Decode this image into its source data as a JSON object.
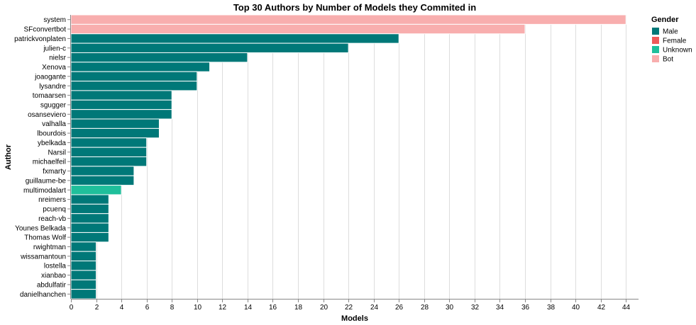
{
  "chart_data": {
    "type": "bar",
    "orientation": "horizontal",
    "title": "Top 30 Authors by Number of Models they Commited in",
    "xlabel": "Models",
    "ylabel": "Author",
    "xlim": [
      0,
      45
    ],
    "x_ticks": [
      0,
      2,
      4,
      6,
      8,
      10,
      12,
      14,
      16,
      18,
      20,
      22,
      24,
      26,
      28,
      30,
      32,
      34,
      36,
      38,
      40,
      42,
      44
    ],
    "grid": true,
    "legend": {
      "title": "Gender",
      "placement": "top-right",
      "entries": [
        {
          "name": "Male",
          "color": "#007878"
        },
        {
          "name": "Female",
          "color": "#f05a5a"
        },
        {
          "name": "Unknown",
          "color": "#1fbf9b"
        },
        {
          "name": "Bot",
          "color": "#f8aeae"
        }
      ]
    },
    "categories": [
      "system",
      "SFconvertbot",
      "patrickvonplaten",
      "julien-c",
      "nielsr",
      "Xenova",
      "joaogante",
      "lysandre",
      "tomaarsen",
      "sgugger",
      "osanseviero",
      "valhalla",
      "lbourdois",
      "ybelkada",
      "Narsil",
      "michaelfeil",
      "fxmarty",
      "guillaume-be",
      "multimodalart",
      "nreimers",
      "pcuenq",
      "reach-vb",
      "Younes Belkada",
      "Thomas Wolf",
      "rwightman",
      "wissamantoun",
      "lostella",
      "xianbao",
      "abdulfatir",
      "danielhanchen"
    ],
    "values": [
      44,
      36,
      26,
      22,
      14,
      11,
      10,
      10,
      8,
      8,
      8,
      7,
      7,
      6,
      6,
      6,
      5,
      5,
      4,
      3,
      3,
      3,
      3,
      3,
      2,
      2,
      2,
      2,
      2,
      2
    ],
    "genders": [
      "Bot",
      "Bot",
      "Male",
      "Male",
      "Male",
      "Male",
      "Male",
      "Male",
      "Male",
      "Male",
      "Male",
      "Male",
      "Male",
      "Male",
      "Male",
      "Male",
      "Male",
      "Male",
      "Unknown",
      "Male",
      "Male",
      "Male",
      "Male",
      "Male",
      "Male",
      "Male",
      "Male",
      "Male",
      "Male",
      "Male"
    ]
  }
}
